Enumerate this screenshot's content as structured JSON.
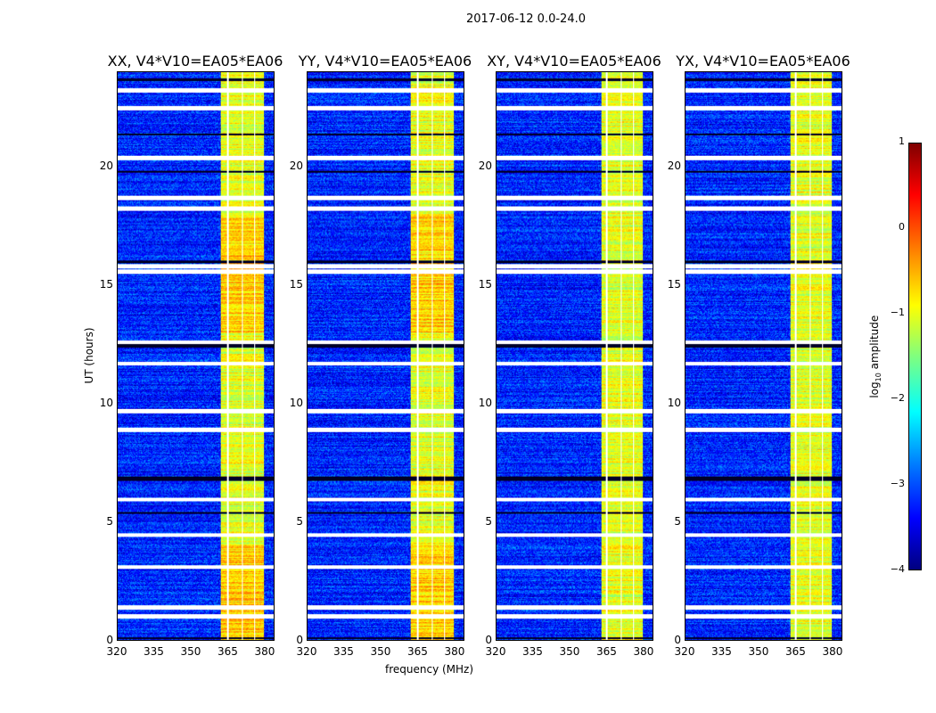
{
  "chart_data": {
    "type": "heatmap",
    "title": "2017-06-12 0.0-24.0",
    "panels": [
      {
        "title": "XX, V4*V10=EA05*EA06",
        "band_start": 362
      },
      {
        "title": "YY, V4*V10=EA05*EA06",
        "band_start": 362
      },
      {
        "title": "XY, V4*V10=EA05*EA06",
        "band_start": 363
      },
      {
        "title": "YX, V4*V10=EA05*EA06",
        "band_start": 363
      }
    ],
    "xlabel": "frequency (MHz)",
    "ylabel": "UT (hours)",
    "xlim": [
      320,
      384
    ],
    "ylim": [
      0,
      24
    ],
    "xticks": [
      "320",
      "335",
      "350",
      "365",
      "380"
    ],
    "yticks": [
      "0",
      "5",
      "10",
      "15",
      "20"
    ],
    "xtick_values": [
      320,
      335,
      350,
      365,
      380
    ],
    "ytick_values": [
      0,
      5,
      10,
      15,
      20
    ],
    "band_end": 380,
    "band_gaps_mhz": [
      365,
      371,
      376
    ],
    "flagged_hours": [
      1.0,
      1.4,
      3.1,
      4.45,
      5.95,
      8.9,
      9.7,
      11.7,
      12.6,
      15.6,
      15.8,
      18.25,
      18.7,
      20.4,
      22.5,
      23.25
    ],
    "dark_hours": [
      0.1,
      5.4,
      6.8,
      6.9,
      12.4,
      12.5,
      16.0,
      19.8,
      21.4,
      23.7
    ],
    "colorbar": {
      "label_main": "log",
      "label_sub": "10",
      "label_rest": " amplitude",
      "ticks": [
        "1",
        "0",
        "−1",
        "−2",
        "−3",
        "−4"
      ],
      "tick_values": [
        1,
        0,
        -1,
        -2,
        -3,
        -4
      ],
      "vmin": -4,
      "vmax": 1,
      "colormap": "jet"
    },
    "background_level": -3.2,
    "band_level": -1.0
  }
}
